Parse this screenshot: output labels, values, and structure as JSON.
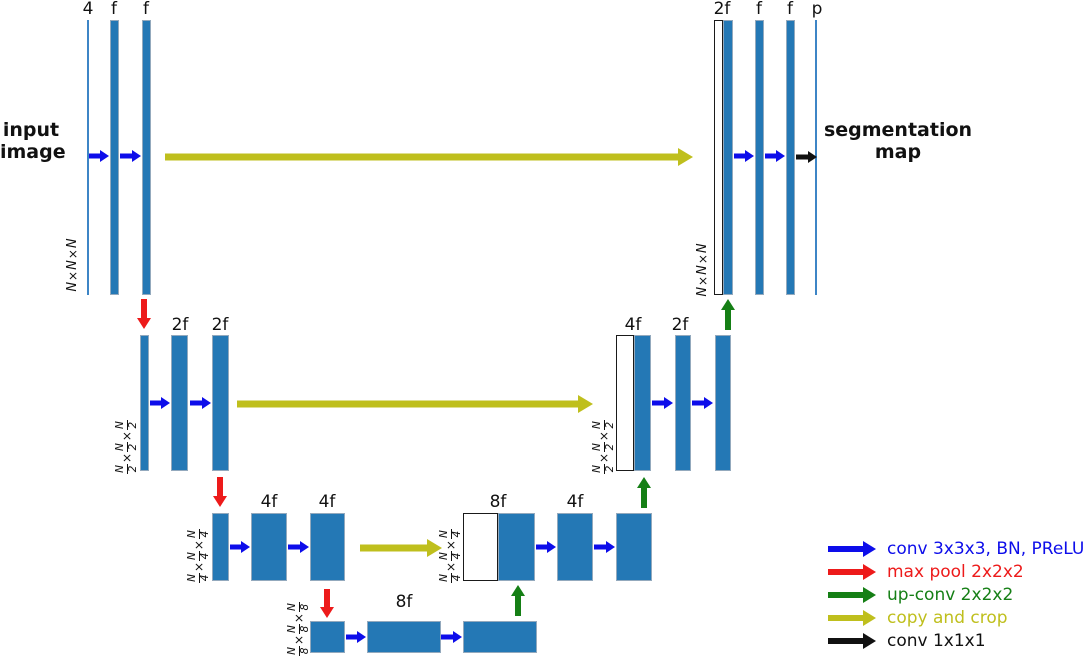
{
  "figure": {
    "type": "u-net-architecture-diagram",
    "input_title": "input\nimage",
    "output_title": "segmentation\nmap"
  },
  "colors": {
    "bar_blue": "#2478b5",
    "thin_line_blue": "#3d85c6",
    "arrow_blue": "#0d0dea",
    "arrow_red": "#ed1a1a",
    "arrow_green": "#157f15",
    "arrow_yellow": "#bfbf1d",
    "arrow_black": "#111111"
  },
  "levels": {
    "enc1": {
      "in": "4",
      "convs": [
        "f",
        "f"
      ],
      "dims": "N×N×N"
    },
    "enc2": {
      "convs": [
        "2f",
        "2f"
      ],
      "dims": "N/2×N/2×N/2"
    },
    "enc3": {
      "convs": [
        "4f",
        "4f"
      ],
      "dims": "N/4×N/4×N/4"
    },
    "bottleneck": {
      "convs": [
        "8f"
      ],
      "dims": "N/8×N/8×N/8"
    },
    "dec3": {
      "concat": "8f",
      "convs": [
        "4f"
      ],
      "dims": "N/4×N/4×N/4"
    },
    "dec2": {
      "concat": "4f",
      "convs": [
        "2f"
      ],
      "dims": "N/2×N/2×N/2"
    },
    "dec1": {
      "concat": "2f",
      "convs": [
        "f",
        "f"
      ],
      "out": "p",
      "dims": "N×N×N"
    }
  },
  "legend": {
    "items": [
      {
        "icon": "conv-arrow",
        "label": "conv 3x3x3, BN, PReLU",
        "color": "#0d0dea"
      },
      {
        "icon": "max-pool-arrow",
        "label": "max pool 2x2x2",
        "color": "#ed1a1a"
      },
      {
        "icon": "up-conv-arrow",
        "label": "up-conv 2x2x2",
        "color": "#157f15"
      },
      {
        "icon": "copy-crop-arrow",
        "label": "copy and crop",
        "color": "#bfbf1d"
      },
      {
        "icon": "conv1x1-arrow",
        "label": "conv 1x1x1",
        "color": "#111111"
      }
    ]
  }
}
